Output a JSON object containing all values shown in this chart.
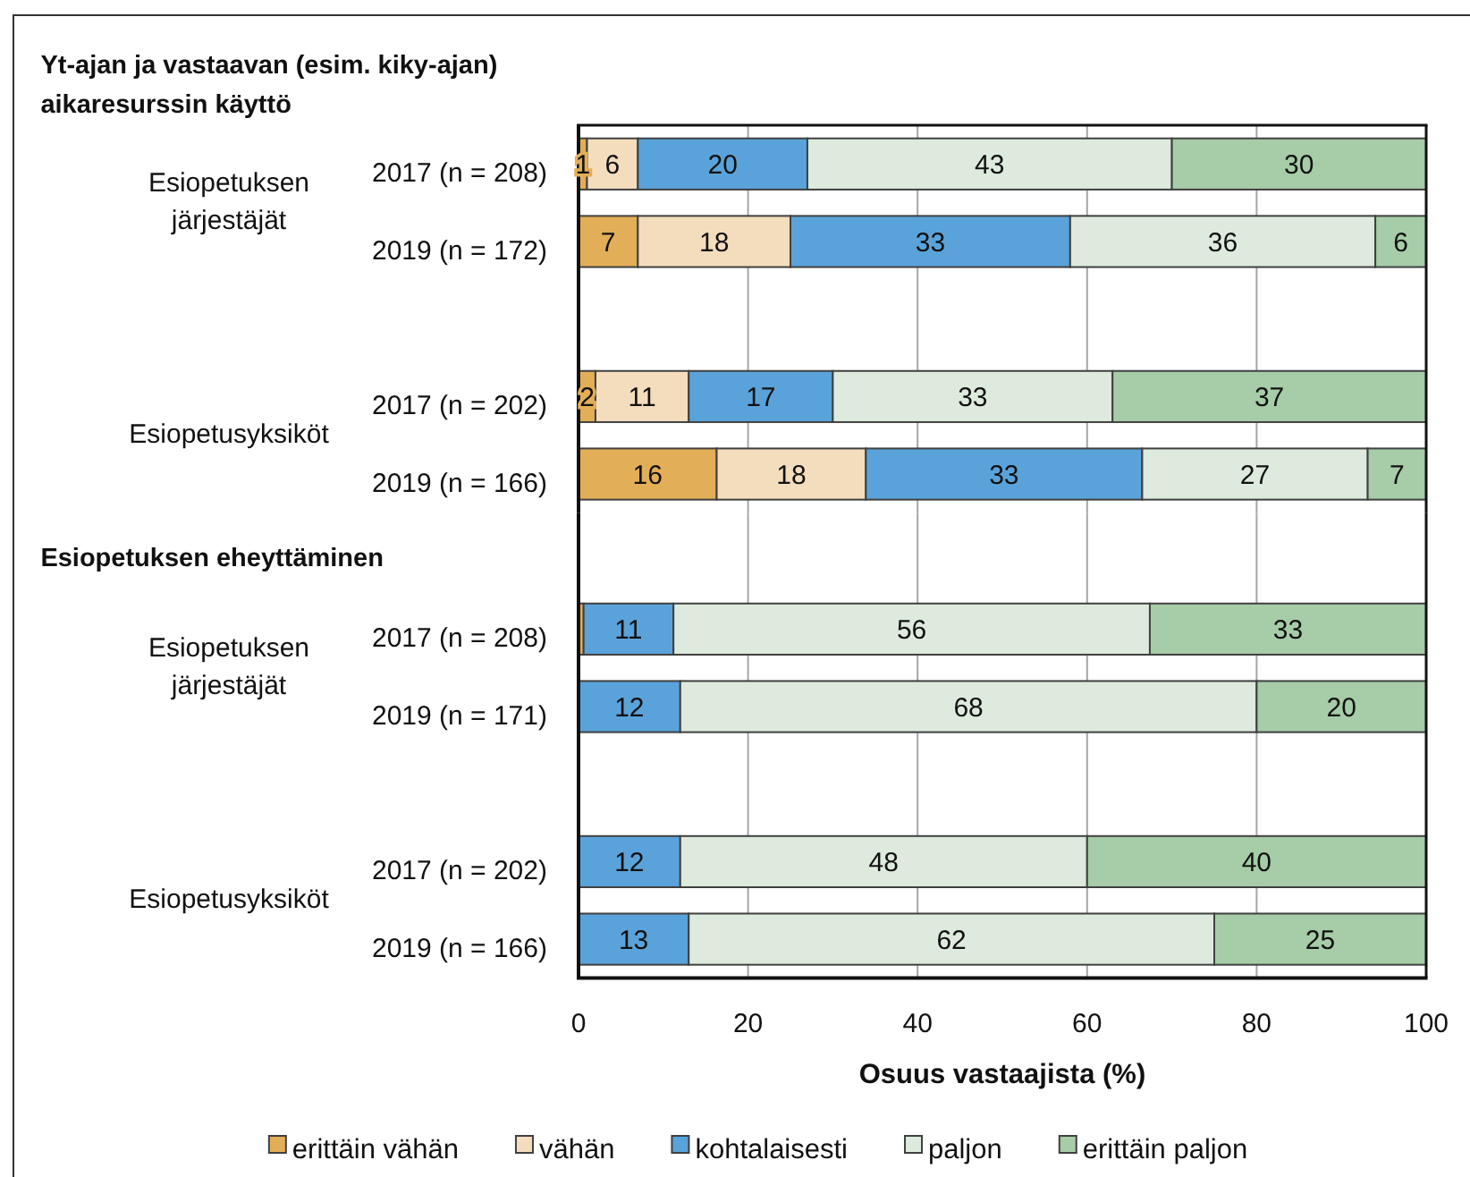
{
  "chart_data": [
    {
      "type": "bar",
      "orientation": "horizontal",
      "stacked": true,
      "title": "Yt-ajan ja vastaavan (esim. kiky-ajan) aikaresurssin käyttö",
      "categories": [
        "2017 (n = 208)",
        "2019 (n = 172)",
        null,
        "2017 (n = 202)",
        "2019 (n = 166)"
      ],
      "series": [
        {
          "color": "#e3ae58",
          "values": [
            1,
            7,
            null,
            2,
            16.3
          ],
          "value_labels": [
            "1",
            "7",
            null,
            "2",
            "16"
          ]
        },
        {
          "color": "#f4ddbd",
          "values": [
            6,
            18,
            null,
            11,
            17.6
          ],
          "value_labels": [
            "6",
            "18",
            null,
            "11",
            "18"
          ]
        },
        {
          "color": "#5aa3da",
          "values": [
            20,
            33,
            null,
            17,
            32.6
          ],
          "value_labels": [
            "20",
            "33",
            null,
            "17",
            "33"
          ]
        },
        {
          "color": "#ddeadd",
          "values": [
            43,
            36,
            null,
            33,
            26.6
          ],
          "value_labels": [
            "43",
            "36",
            null,
            "33",
            "27"
          ]
        },
        {
          "color": "#a6cca8",
          "values": [
            30,
            6,
            null,
            37,
            6.9
          ],
          "value_labels": [
            "30",
            "6",
            null,
            "37",
            "7"
          ]
        }
      ],
      "xlim": [
        0,
        100
      ],
      "xticks": [
        0,
        20,
        40,
        60,
        80,
        100
      ],
      "grid": "x",
      "tick_labels": "y",
      "annotations": [
        "Esiopetuksen järjestäjät",
        "Esiopetusyksiköt"
      ]
    },
    {
      "type": "bar",
      "orientation": "horizontal",
      "stacked": true,
      "title": "Esiopetuksen eheyttäminen",
      "categories": [
        "2017 (n = 208)",
        "2019 (n = 171)",
        null,
        "2017 (n = 202)",
        "2019 (n = 166)"
      ],
      "series": [
        {
          "name": "erittäin vähän",
          "color": "#e3ae58",
          "values": [
            0.6,
            null,
            null,
            null,
            null
          ]
        },
        {
          "name": "vähän",
          "color": "#f4ddbd",
          "values": [
            null,
            null,
            null,
            null,
            null
          ]
        },
        {
          "name": "kohtalaisesti",
          "color": "#5aa3da",
          "values": [
            10.6,
            12,
            null,
            12,
            13
          ],
          "value_labels": [
            "11",
            "12",
            null,
            "12",
            "13"
          ]
        },
        {
          "name": "paljon",
          "color": "#ddeadd",
          "values": [
            56.2,
            68,
            null,
            48,
            62
          ],
          "value_labels": [
            "56",
            "68",
            null,
            "48",
            "62"
          ]
        },
        {
          "name": "erittäin paljon",
          "color": "#a6cca8",
          "values": [
            32.6,
            20,
            null,
            40,
            25
          ],
          "value_labels": [
            "33",
            "20",
            null,
            "40",
            "25"
          ]
        }
      ],
      "xlim": [
        0,
        100
      ],
      "xticks": [
        0,
        20,
        40,
        60,
        80,
        100
      ],
      "grid": "x",
      "xlabel": "Osuus vastaajista (%)",
      "legend": "bottom",
      "annotations": [
        "Esiopetuksen järjestäjät",
        "Esiopetusyksiköt"
      ]
    }
  ]
}
